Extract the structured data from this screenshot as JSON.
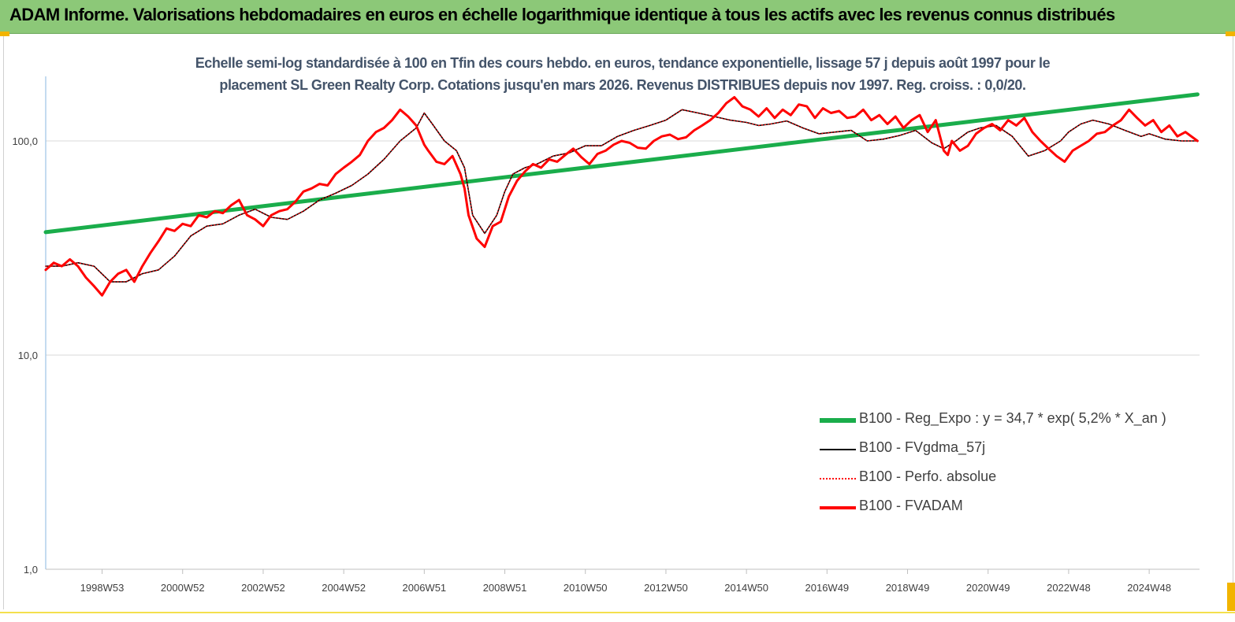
{
  "header": {
    "title": "ADAM Informe. Valorisations hebdomadaires en euros en échelle logarithmique identique à tous les actifs avec les revenus connus distribués"
  },
  "colors": {
    "header_bg": "#8cc878",
    "regression": "#1aad4b",
    "smoothed": "#000000",
    "absolute": "#ff0000",
    "fvadam": "#ff0000",
    "subtitle": "#44546a"
  },
  "chart_data": {
    "type": "line",
    "title_lines": [
      "Echelle semi-log standardisée à 100 en Tfin des cours hebdo. en euros, tendance exponentielle, lissage 57 j depuis août 1997 pour le",
      "placement SL Green Realty Corp. Cotations jusqu'en mars 2026. Revenus  DISTRIBUES depuis nov 1997. Reg. croiss. : 0,0/20."
    ],
    "y_scale": "log",
    "ylim": [
      1,
      200
    ],
    "y_ticks": [
      "1,0",
      "10,0",
      "100,0"
    ],
    "y_tick_values": [
      1,
      10,
      100
    ],
    "x_ticks": [
      "1998W53",
      "2000W52",
      "2002W52",
      "2004W52",
      "2006W51",
      "2008W51",
      "2010W50",
      "2012W50",
      "2014W50",
      "2016W49",
      "2018W49",
      "2020W49",
      "2022W48",
      "2024W48"
    ],
    "x_tick_years": [
      1999.0,
      2001.0,
      2003.0,
      2005.0,
      2007.0,
      2009.0,
      2011.0,
      2013.0,
      2015.0,
      2017.0,
      2019.0,
      2021.0,
      2023.0,
      2025.0
    ],
    "xlim_years": [
      1997.6,
      2026.25
    ],
    "legend_position": "bottom-right",
    "series": [
      {
        "name": "B100 - Reg_Expo : y = 34,7 * exp( 5,2% *  X_an )",
        "style": "green-thick",
        "x": [
          1997.6,
          2026.2
        ],
        "y": [
          37.5,
          165
        ]
      },
      {
        "name": "B100 - FVgdma_57j",
        "style": "black-thin",
        "x": [
          1997.6,
          1998.0,
          1998.4,
          1998.8,
          1999.2,
          1999.6,
          2000.0,
          2000.4,
          2000.8,
          2001.2,
          2001.6,
          2002.0,
          2002.4,
          2002.8,
          2003.2,
          2003.6,
          2004.0,
          2004.4,
          2004.8,
          2005.2,
          2005.6,
          2006.0,
          2006.4,
          2006.8,
          2007.0,
          2007.2,
          2007.5,
          2007.8,
          2008.0,
          2008.2,
          2008.5,
          2008.8,
          2009.0,
          2009.2,
          2009.5,
          2009.8,
          2010.2,
          2010.6,
          2011.0,
          2011.4,
          2011.8,
          2012.2,
          2012.6,
          2013.0,
          2013.4,
          2013.8,
          2014.2,
          2014.6,
          2015.0,
          2015.3,
          2015.6,
          2016.0,
          2016.4,
          2016.8,
          2017.2,
          2017.6,
          2018.0,
          2018.4,
          2018.8,
          2019.2,
          2019.6,
          2019.9,
          2020.2,
          2020.5,
          2020.8,
          2021.2,
          2021.6,
          2022.0,
          2022.4,
          2022.8,
          2023.0,
          2023.3,
          2023.6,
          2024.0,
          2024.4,
          2024.8,
          2025.0,
          2025.4,
          2025.8,
          2026.2
        ],
        "y": [
          26,
          26,
          27,
          26,
          22,
          22,
          24,
          25,
          29,
          36,
          40,
          41,
          45,
          48,
          44,
          43,
          47,
          53,
          57,
          62,
          70,
          82,
          100,
          115,
          135,
          120,
          100,
          90,
          75,
          45,
          37,
          45,
          58,
          70,
          75,
          78,
          85,
          88,
          95,
          95,
          105,
          112,
          118,
          125,
          140,
          135,
          130,
          125,
          122,
          118,
          120,
          124,
          115,
          108,
          110,
          112,
          100,
          102,
          106,
          112,
          98,
          92,
          100,
          110,
          115,
          118,
          105,
          85,
          90,
          100,
          110,
          120,
          125,
          120,
          112,
          105,
          108,
          102,
          100,
          100
        ]
      },
      {
        "name": "B100 - Perfo. absolue",
        "style": "red-dotted",
        "x": [
          1997.6,
          1998.0,
          1998.4,
          1998.8,
          1999.2,
          1999.6,
          2000.0,
          2000.4,
          2000.8,
          2001.2,
          2001.6,
          2002.0,
          2002.4,
          2002.8,
          2003.2,
          2003.6,
          2004.0,
          2004.4,
          2004.8,
          2005.2,
          2005.6,
          2006.0,
          2006.4,
          2006.8,
          2007.0,
          2007.2,
          2007.5,
          2007.8,
          2008.0,
          2008.2,
          2008.5,
          2008.8,
          2009.0,
          2009.2,
          2009.5,
          2009.8,
          2010.2,
          2010.6,
          2011.0,
          2011.4,
          2011.8,
          2012.2,
          2012.6,
          2013.0,
          2013.4,
          2013.8,
          2014.2,
          2014.6,
          2015.0,
          2015.3,
          2015.6,
          2016.0,
          2016.4,
          2016.8,
          2017.2,
          2017.6,
          2018.0,
          2018.4,
          2018.8,
          2019.2,
          2019.6,
          2019.9,
          2020.2,
          2020.5,
          2020.8,
          2021.2,
          2021.6,
          2022.0,
          2022.4,
          2022.8,
          2023.0,
          2023.3,
          2023.6,
          2024.0,
          2024.4,
          2024.8,
          2025.0,
          2025.4,
          2025.8,
          2026.2
        ],
        "y": [
          26,
          26,
          27,
          26,
          22,
          22,
          24,
          25,
          29,
          36,
          40,
          41,
          45,
          48,
          44,
          43,
          47,
          53,
          57,
          62,
          70,
          82,
          100,
          115,
          135,
          120,
          100,
          90,
          75,
          45,
          37,
          45,
          58,
          70,
          75,
          78,
          85,
          88,
          95,
          95,
          105,
          112,
          118,
          125,
          140,
          135,
          130,
          125,
          122,
          118,
          120,
          124,
          115,
          108,
          110,
          112,
          100,
          102,
          106,
          112,
          98,
          92,
          100,
          110,
          115,
          118,
          105,
          85,
          90,
          100,
          110,
          120,
          125,
          120,
          112,
          105,
          108,
          102,
          100,
          100
        ]
      },
      {
        "name": "B100 - FVADAM",
        "style": "red-thick",
        "x": [
          1997.6,
          1997.8,
          1998.0,
          1998.2,
          1998.4,
          1998.6,
          1998.8,
          1999.0,
          1999.2,
          1999.4,
          1999.6,
          1999.8,
          2000.0,
          2000.2,
          2000.4,
          2000.6,
          2000.8,
          2001.0,
          2001.2,
          2001.4,
          2001.6,
          2001.8,
          2002.0,
          2002.2,
          2002.4,
          2002.6,
          2002.8,
          2003.0,
          2003.2,
          2003.4,
          2003.6,
          2003.8,
          2004.0,
          2004.2,
          2004.4,
          2004.6,
          2004.8,
          2005.0,
          2005.2,
          2005.4,
          2005.6,
          2005.8,
          2006.0,
          2006.2,
          2006.4,
          2006.6,
          2006.8,
          2007.0,
          2007.1,
          2007.3,
          2007.5,
          2007.7,
          2007.9,
          2008.0,
          2008.1,
          2008.3,
          2008.5,
          2008.7,
          2008.9,
          2009.1,
          2009.3,
          2009.5,
          2009.7,
          2009.9,
          2010.1,
          2010.3,
          2010.5,
          2010.7,
          2010.9,
          2011.1,
          2011.3,
          2011.5,
          2011.7,
          2011.9,
          2012.1,
          2012.3,
          2012.5,
          2012.7,
          2012.9,
          2013.1,
          2013.3,
          2013.5,
          2013.7,
          2013.9,
          2014.1,
          2014.3,
          2014.5,
          2014.7,
          2014.9,
          2015.1,
          2015.3,
          2015.5,
          2015.7,
          2015.9,
          2016.1,
          2016.3,
          2016.5,
          2016.7,
          2016.9,
          2017.1,
          2017.3,
          2017.5,
          2017.7,
          2017.9,
          2018.1,
          2018.3,
          2018.5,
          2018.7,
          2018.9,
          2019.1,
          2019.3,
          2019.5,
          2019.7,
          2019.9,
          2020.0,
          2020.1,
          2020.3,
          2020.5,
          2020.7,
          2020.9,
          2021.1,
          2021.3,
          2021.5,
          2021.7,
          2021.9,
          2022.1,
          2022.3,
          2022.5,
          2022.7,
          2022.9,
          2023.1,
          2023.3,
          2023.5,
          2023.7,
          2023.9,
          2024.1,
          2024.3,
          2024.5,
          2024.7,
          2024.9,
          2025.1,
          2025.3,
          2025.5,
          2025.7,
          2025.9,
          2026.2
        ],
        "y": [
          25,
          27,
          26,
          28,
          26,
          23,
          21,
          19,
          22,
          24,
          25,
          22,
          26,
          30,
          34,
          39,
          38,
          41,
          40,
          45,
          44,
          47,
          46,
          50,
          53,
          45,
          43,
          40,
          45,
          47,
          48,
          52,
          58,
          60,
          63,
          62,
          70,
          75,
          80,
          86,
          100,
          110,
          115,
          125,
          140,
          130,
          118,
          96,
          90,
          80,
          78,
          85,
          70,
          60,
          45,
          35,
          32,
          40,
          42,
          55,
          65,
          72,
          78,
          75,
          82,
          80,
          86,
          92,
          84,
          78,
          87,
          90,
          96,
          100,
          98,
          93,
          92,
          100,
          105,
          107,
          102,
          104,
          112,
          118,
          125,
          135,
          150,
          160,
          145,
          140,
          130,
          142,
          128,
          140,
          132,
          148,
          145,
          128,
          142,
          135,
          138,
          128,
          130,
          140,
          125,
          132,
          120,
          130,
          115,
          125,
          132,
          110,
          125,
          90,
          86,
          100,
          90,
          95,
          108,
          115,
          120,
          112,
          125,
          118,
          128,
          110,
          100,
          92,
          85,
          80,
          90,
          95,
          100,
          108,
          110,
          118,
          125,
          140,
          128,
          118,
          125,
          110,
          118,
          105,
          110,
          100
        ]
      }
    ]
  }
}
